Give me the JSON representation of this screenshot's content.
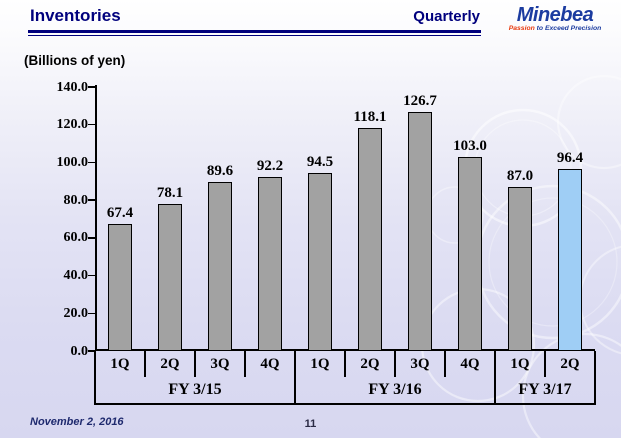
{
  "header": {
    "title": "Inventories",
    "subtitle": "Quarterly",
    "logo": {
      "name": "Minebea",
      "tagline_red": "Passion",
      "tagline_blue": " to Exceed Precision"
    }
  },
  "chart_data": {
    "type": "bar",
    "title": "Inventories (Quarterly)",
    "unit_label": "(Billions of yen)",
    "categories": [
      "1Q",
      "2Q",
      "3Q",
      "4Q",
      "1Q",
      "2Q",
      "3Q",
      "4Q",
      "1Q",
      "2Q"
    ],
    "groups": [
      {
        "label": "FY 3/15",
        "span": 4
      },
      {
        "label": "FY 3/16",
        "span": 4
      },
      {
        "label": "FY 3/17",
        "span": 2
      }
    ],
    "values": [
      67.4,
      78.1,
      89.6,
      92.2,
      94.5,
      118.1,
      126.7,
      103.0,
      87.0,
      96.4
    ],
    "ylim": [
      0,
      140
    ],
    "ytick_step": 20,
    "ytick_labels": [
      "140.0",
      "120.0",
      "100.0",
      "80.0",
      "60.0",
      "40.0",
      "20.0",
      "0.0"
    ],
    "grid": false,
    "legend": null,
    "bar_color_default": "#a2a2a2",
    "bar_color_highlight": "#9fcef5",
    "highlight_index": 9
  },
  "colors": {
    "navy": "#00007d",
    "logo_blue": "#1c3ca0",
    "logo_red": "#e8380d"
  },
  "footer": {
    "date": "November 2, 2016",
    "page": "11"
  }
}
